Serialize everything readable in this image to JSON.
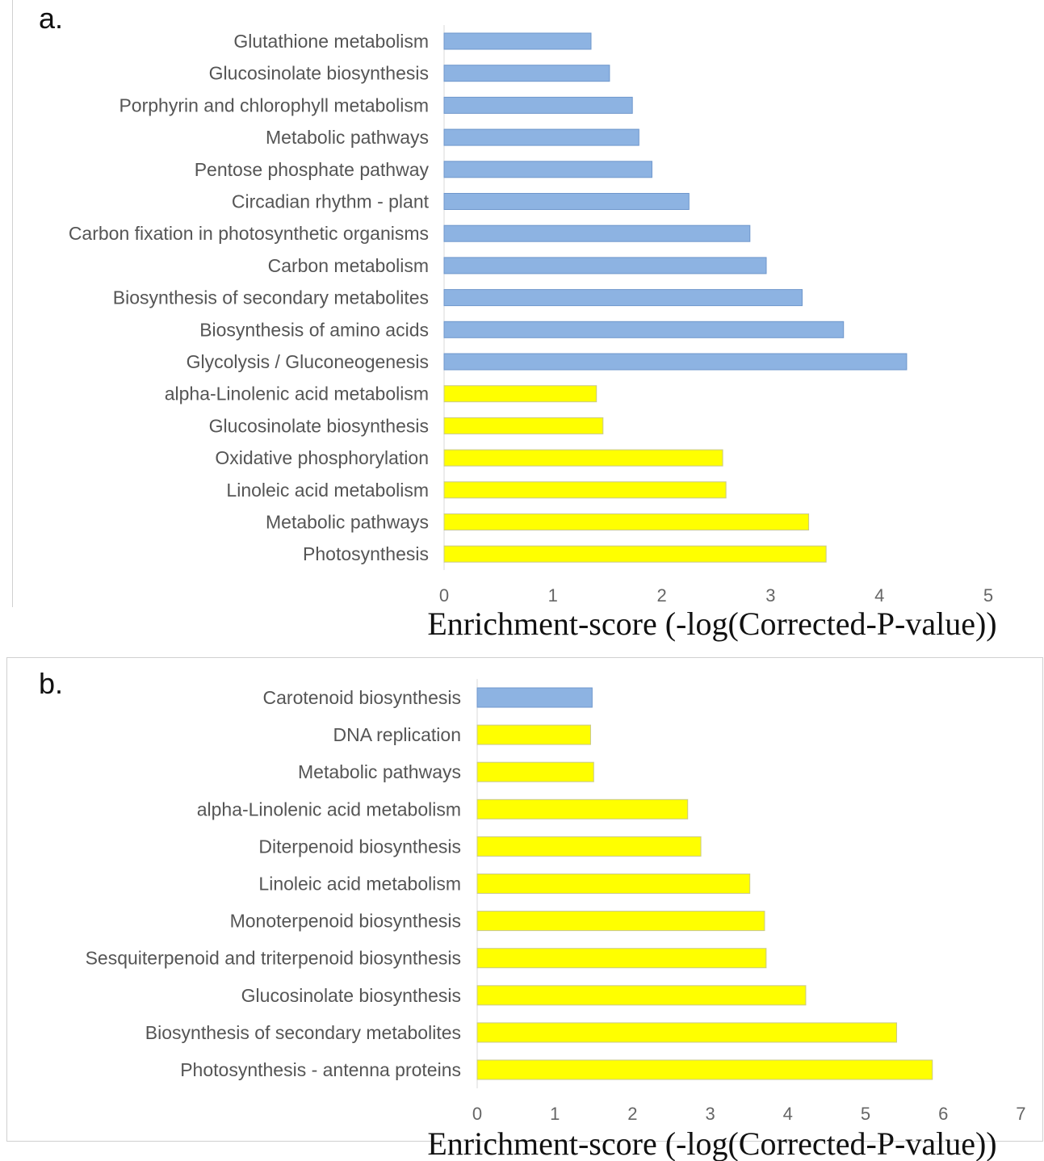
{
  "colors": {
    "blue": "#8db3e2",
    "blue_edge": "#6f97cc",
    "yellow": "#ffff00",
    "yellow_edge": "#c9c98a"
  },
  "chart_data": [
    {
      "panel": "a.",
      "type": "bar",
      "orientation": "horizontal",
      "xlabel": "Enrichment-score (-log(Corrected-P-value))",
      "xlim": [
        0,
        5
      ],
      "xticks": [
        "0",
        "1",
        "2",
        "3",
        "4",
        "5"
      ],
      "grid": false,
      "legend": "none",
      "categories": [
        "Glutathione metabolism",
        "Glucosinolate biosynthesis",
        "Porphyrin and chlorophyll metabolism",
        "Metabolic pathways",
        "Pentose phosphate pathway",
        "Circadian rhythm - plant",
        "Carbon fixation in photosynthetic organisms",
        "Carbon metabolism",
        "Biosynthesis of secondary metabolites",
        "Biosynthesis of amino acids",
        "Glycolysis / Gluconeogenesis",
        "alpha-Linolenic acid metabolism",
        "Glucosinolate biosynthesis",
        "Oxidative phosphorylation",
        "Linoleic acid metabolism",
        "Metabolic pathways",
        "Photosynthesis"
      ],
      "values": [
        1.35,
        1.52,
        1.73,
        1.79,
        1.91,
        2.25,
        2.81,
        2.96,
        3.29,
        3.67,
        4.25,
        1.4,
        1.46,
        2.56,
        2.59,
        3.35,
        3.51
      ],
      "bar_colors": [
        "blue",
        "blue",
        "blue",
        "blue",
        "blue",
        "blue",
        "blue",
        "blue",
        "blue",
        "blue",
        "blue",
        "yellow",
        "yellow",
        "yellow",
        "yellow",
        "yellow",
        "yellow"
      ]
    },
    {
      "panel": "b.",
      "type": "bar",
      "orientation": "horizontal",
      "xlabel": "Enrichment-score (-log(Corrected-P-value))",
      "xlim": [
        0,
        7
      ],
      "xticks": [
        "0",
        "1",
        "2",
        "3",
        "4",
        "5",
        "6",
        "7"
      ],
      "grid": false,
      "legend": "none",
      "categories": [
        "Carotenoid biosynthesis",
        "DNA replication",
        "Metabolic pathways",
        "alpha-Linolenic acid metabolism",
        "Diterpenoid biosynthesis",
        "Linoleic acid metabolism",
        "Monoterpenoid biosynthesis",
        "Sesquiterpenoid and triterpenoid biosynthesis",
        "Glucosinolate biosynthesis",
        "Biosynthesis of secondary metabolites",
        "Photosynthesis - antenna proteins"
      ],
      "values": [
        1.48,
        1.46,
        1.5,
        2.71,
        2.88,
        3.51,
        3.7,
        3.72,
        4.23,
        5.4,
        5.86
      ],
      "bar_colors": [
        "blue",
        "yellow",
        "yellow",
        "yellow",
        "yellow",
        "yellow",
        "yellow",
        "yellow",
        "yellow",
        "yellow",
        "yellow"
      ]
    }
  ]
}
